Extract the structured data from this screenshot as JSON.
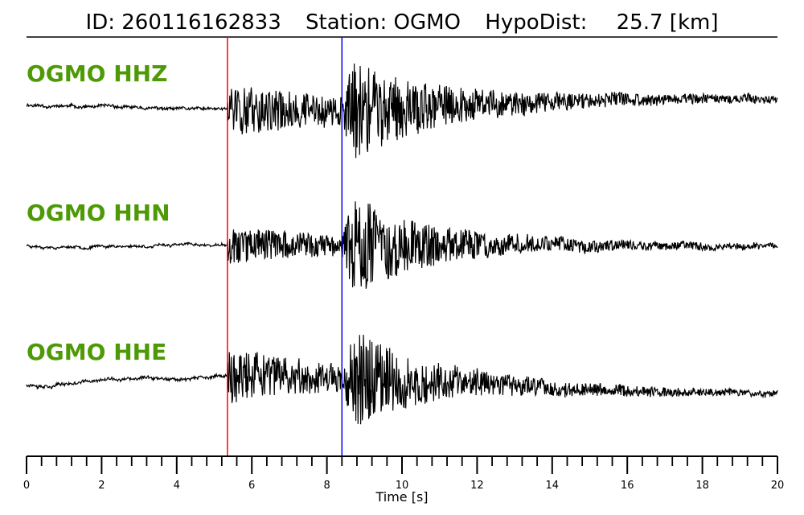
{
  "header": {
    "id_label": "ID:",
    "id_value": "260116162833",
    "station_label": "Station:",
    "station_value": "OGMO",
    "hypodist_label": "HypoDist:",
    "hypodist_value": "25.7",
    "hypodist_unit": "[km]"
  },
  "colors": {
    "label_green": "#4e9a06",
    "p_pick": "#ff0000",
    "s_pick": "#0000ff",
    "trace": "#000000"
  },
  "chart_data": {
    "type": "line",
    "xlabel": "Time [s]",
    "xlim": [
      0,
      20
    ],
    "major_ticks": [
      0,
      2,
      4,
      6,
      8,
      10,
      12,
      14,
      16,
      18,
      20
    ],
    "minor_tick_step": 0.4,
    "picks": [
      {
        "name": "P",
        "time": 5.35,
        "color": "#ff0000"
      },
      {
        "name": "S",
        "time": 8.4,
        "color": "#0000ff"
      }
    ],
    "series": [
      {
        "name": "OGMO HHZ",
        "noise": 0.03,
        "p_amp": 0.6,
        "s_amp": 1.0,
        "coda": 0.35,
        "drift": -0.12,
        "seed": 11
      },
      {
        "name": "OGMO HHN",
        "noise": 0.02,
        "p_amp": 0.35,
        "s_amp": 1.0,
        "coda": 0.22,
        "drift": 0.0,
        "seed": 23
      },
      {
        "name": "OGMO HHE",
        "noise": 0.03,
        "p_amp": 0.55,
        "s_amp": 1.0,
        "coda": 0.25,
        "drift": 0.15,
        "seed": 37
      }
    ]
  }
}
